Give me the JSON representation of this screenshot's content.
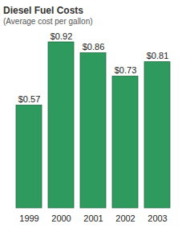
{
  "chart_data": {
    "type": "bar",
    "title": "Diesel Fuel Costs",
    "subtitle": "(Average cost per gallon)",
    "categories": [
      "1999",
      "2000",
      "2001",
      "2002",
      "2003"
    ],
    "values": [
      0.57,
      0.92,
      0.86,
      0.73,
      0.81
    ],
    "value_labels": [
      "$0.57",
      "$0.92",
      "$0.86",
      "$0.73",
      "$0.81"
    ],
    "color": "#2e9a5e",
    "data_labels": true,
    "tick_labels": "x",
    "grid": false
  }
}
